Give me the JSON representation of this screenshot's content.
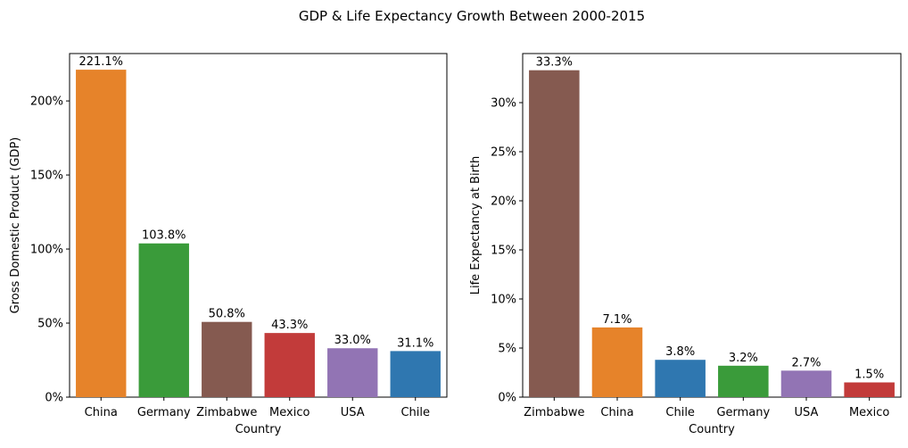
{
  "figure": {
    "title": "GDP & Life Expectancy Growth Between 2000-2015"
  },
  "chart_data": [
    {
      "type": "bar",
      "xlabel": "Country",
      "ylabel": "Gross Domestic Product (GDP)",
      "categories": [
        "China",
        "Germany",
        "Zimbabwe",
        "Mexico",
        "USA",
        "Chile"
      ],
      "values": [
        221.1,
        103.8,
        50.8,
        43.3,
        33.0,
        31.1
      ],
      "data_labels": [
        "221.1%",
        "103.8%",
        "50.8%",
        "43.3%",
        "33.0%",
        "31.1%"
      ],
      "colors": [
        "#e6832a",
        "#3a9b3a",
        "#855a50",
        "#c23b3a",
        "#9274b4",
        "#2f77b0"
      ],
      "ylim": [
        0,
        232
      ],
      "yticks": [
        0,
        50,
        100,
        150,
        200
      ],
      "ytick_labels": [
        "0%",
        "50%",
        "100%",
        "150%",
        "200%"
      ],
      "grid": false
    },
    {
      "type": "bar",
      "xlabel": "Country",
      "ylabel": "Life Expectancy at Birth",
      "categories": [
        "Zimbabwe",
        "China",
        "Chile",
        "Germany",
        "USA",
        "Mexico"
      ],
      "values": [
        33.3,
        7.1,
        3.8,
        3.2,
        2.7,
        1.5
      ],
      "data_labels": [
        "33.3%",
        "7.1%",
        "3.8%",
        "3.2%",
        "2.7%",
        "1.5%"
      ],
      "colors": [
        "#855a50",
        "#e6832a",
        "#2f77b0",
        "#3a9b3a",
        "#9274b4",
        "#c23b3a"
      ],
      "ylim": [
        0,
        35
      ],
      "yticks": [
        0,
        5,
        10,
        15,
        20,
        25,
        30
      ],
      "ytick_labels": [
        "0%",
        "5%",
        "10%",
        "15%",
        "20%",
        "25%",
        "30%"
      ],
      "grid": false
    }
  ]
}
